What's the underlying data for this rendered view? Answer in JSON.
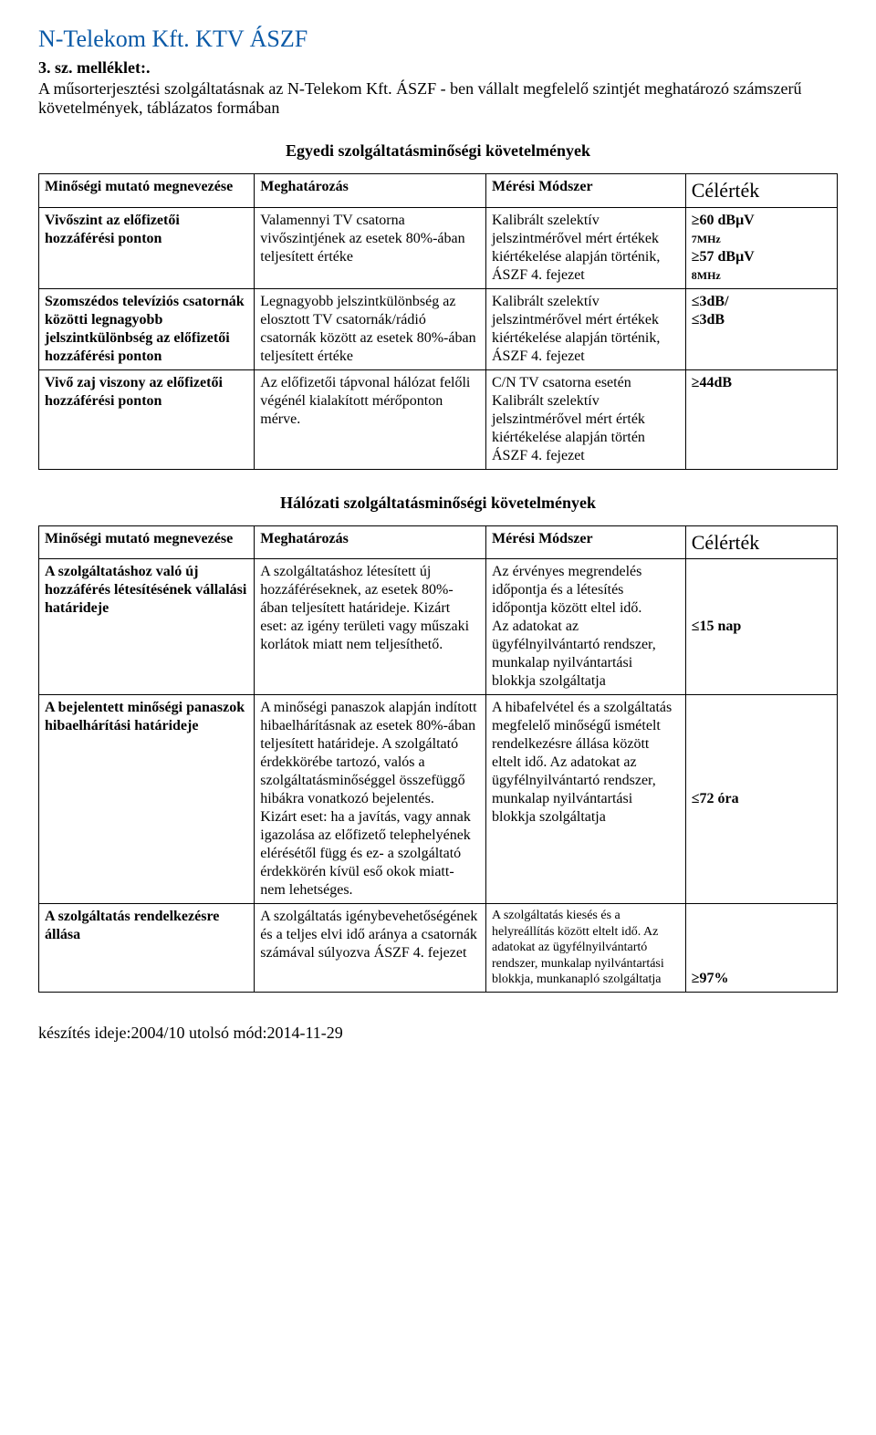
{
  "header": {
    "title": "N-Telekom Kft. KTV ÁSZF",
    "subtitle": "3. sz. melléklet:.",
    "intro": "A műsorterjesztési szolgáltatásnak az N-Telekom Kft. ÁSZF - ben vállalt megfelelő szintjét meghatározó számszerű követelmények, táblázatos formában"
  },
  "sections": {
    "table1_heading": "Egyedi szolgáltatásminőségi követelmények",
    "table2_heading": "Hálózati szolgáltatásminőségi követelmények"
  },
  "table1": {
    "head": {
      "c1": "Minőségi mutató megnevezése",
      "c2": "Meghatározás",
      "c3": "Mérési Módszer",
      "c4": "Célérték"
    },
    "rows": [
      {
        "c1": "Vivőszint az előfizetői hozzáférési ponton",
        "c2": "Valamennyi TV csatorna vivőszintjének az esetek 80%-ában teljesített értéke",
        "c3": "Kalibrált szelektív jelszintmérővel mért értékek kiértékelése alapján történik, ÁSZF 4. fejezet",
        "c4_line1": "≥60 dBμV",
        "c4_line2": "7MHz",
        "c4_line3": "≥57 dBμV",
        "c4_line4": "8MHz"
      },
      {
        "c1": "Szomszédos televíziós csatornák közötti legnagyobb jelszintkülönbség az előfizetői hozzáférési ponton",
        "c2": "Legnagyobb jelszintkülönbség az elosztott TV csatornák/rádió csatornák között az esetek 80%-ában teljesített értéke",
        "c3": "Kalibrált szelektív jelszintmérővel mért értékek kiértékelése alapján történik, ÁSZF 4. fejezet",
        "c4": "≤3dB/\n≤3dB"
      },
      {
        "c1": "Vivő zaj viszony az előfizetői hozzáférési ponton",
        "c2": "Az előfizetői tápvonal hálózat felőli végénél kialakított mérőponton mérve.",
        "c3": "C/N TV csatorna esetén Kalibrált szelektív jelszintmérővel mért érték kiértékelése alapján történ ÁSZF 4. fejezet",
        "c4": "≥44dB"
      }
    ]
  },
  "table2": {
    "head": {
      "c1": "Minőségi mutató megnevezése",
      "c2": "Meghatározás",
      "c3": "Mérési Módszer",
      "c4": "Célérték"
    },
    "rows": [
      {
        "c1": "A szolgáltatáshoz való új hozzáférés létesítésének vállalási határideje",
        "c2": "A szolgáltatáshoz létesített új hozzáféréseknek, az esetek 80%-ában teljesített határideje. Kizárt eset: az igény területi vagy műszaki korlátok miatt nem teljesíthető.",
        "c3": "Az érvényes megrendelés időpontja és a létesítés időpontja között eltel idő.\nAz adatokat az ügyfélnyilvántartó rendszer, munkalap nyilvántartási blokkja szolgáltatja",
        "c4": "≤15 nap"
      },
      {
        "c1": "A bejelentett minőségi panaszok hibaelhárítási határideje",
        "c2": "A minőségi panaszok alapján indított hibaelhárításnak az esetek 80%-ában teljesített határideje. A szolgáltató érdekkörébe tartozó, valós a szolgáltatásminőséggel összefüggő hibákra vonatkozó bejelentés.\nKizárt eset: ha a javítás, vagy annak igazolása az előfizető telephelyének elérésétől függ és ez- a szolgáltató érdekkörén kívül eső okok miatt- nem lehetséges.",
        "c3": "A hibafelvétel és a szolgáltatás megfelelő minőségű ismételt rendelkezésre állása között eltelt idő. Az adatokat az ügyfélnyilvántartó rendszer, munkalap nyilvántartási blokkja szolgáltatja",
        "c4": "≤72 óra"
      },
      {
        "c1": "A szolgáltatás rendelkezésre állása",
        "c2": "A szolgáltatás igénybevehetőségének és a teljes elvi idő aránya a csatornák számával súlyozva ÁSZF 4. fejezet",
        "c3": "A szolgáltatás kiesés és a helyreállítás között eltelt idő. Az adatokat az ügyfélnyilvántartó rendszer, munkalap nyilvántartási blokkja, munkanapló szolgáltatja",
        "c4": "≥97%"
      }
    ]
  },
  "footer": "készítés ideje:2004/10  utolsó mód:2014-11-29"
}
